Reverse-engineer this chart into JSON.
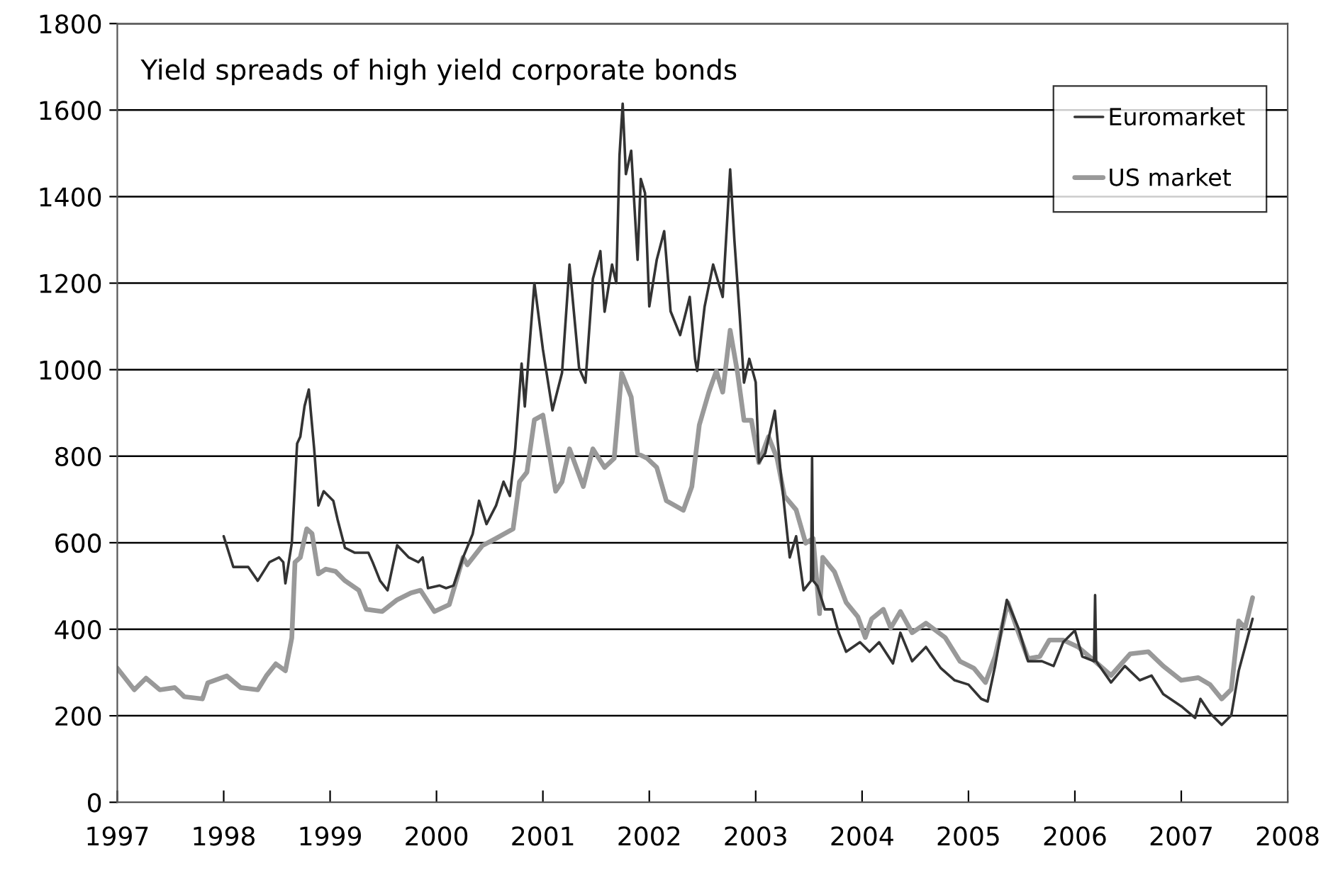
{
  "chart_data": {
    "type": "line",
    "title": "Yield spreads of high yield corporate bonds",
    "xlim": [
      1997,
      2008
    ],
    "xticks": [
      1997,
      1998,
      1999,
      2000,
      2001,
      2002,
      2003,
      2004,
      2005,
      2006,
      2007,
      2008
    ],
    "ylim": [
      0,
      1800
    ],
    "yticks": [
      0,
      200,
      400,
      600,
      800,
      1000,
      1200,
      1400,
      1600,
      1800
    ],
    "grid": "y",
    "legend": "top right",
    "marker": "none",
    "line_style": "solid",
    "series": [
      {
        "name": "Euromarket",
        "color": "#333333",
        "x": [
          1998.0,
          1998.09,
          1998.23,
          1998.32,
          1998.43,
          1998.52,
          1998.56,
          1998.58,
          1998.64,
          1998.69,
          1998.72,
          1998.76,
          1998.8,
          1998.85,
          1998.89,
          1998.94,
          1999.03,
          1999.07,
          1999.14,
          1999.23,
          1999.36,
          1999.4,
          1999.47,
          1999.54,
          1999.63,
          1999.74,
          1999.83,
          1999.87,
          1999.92,
          2000.03,
          2000.09,
          2000.16,
          2000.25,
          2000.34,
          2000.4,
          2000.47,
          2000.56,
          2000.63,
          2000.69,
          2000.74,
          2000.8,
          2000.83,
          2000.92,
          2001.0,
          2001.09,
          2001.18,
          2001.25,
          2001.34,
          2001.4,
          2001.47,
          2001.54,
          2001.58,
          2001.65,
          2001.69,
          2001.72,
          2001.75,
          2001.78,
          2001.83,
          2001.89,
          2001.92,
          2001.96,
          2002.0,
          2002.07,
          2002.14,
          2002.2,
          2002.29,
          2002.38,
          2002.43,
          2002.45,
          2002.52,
          2002.6,
          2002.69,
          2002.76,
          2002.8,
          2002.85,
          2002.89,
          2002.94,
          2003.0,
          2003.03,
          2003.09,
          2003.18,
          2003.23,
          2003.32,
          2003.38,
          2003.45,
          2003.52,
          2003.53,
          2003.54,
          2003.58,
          2003.65,
          2003.72,
          2003.78,
          2003.85,
          2003.98,
          2004.07,
          2004.16,
          2004.29,
          2004.36,
          2004.47,
          2004.6,
          2004.74,
          2004.87,
          2005.0,
          2005.12,
          2005.18,
          2005.25,
          2005.36,
          2005.47,
          2005.56,
          2005.69,
          2005.8,
          2005.89,
          2006.0,
          2006.07,
          2006.18,
          2006.19,
          2006.2,
          2006.34,
          2006.47,
          2006.61,
          2006.72,
          2006.83,
          2007.0,
          2007.13,
          2007.18,
          2007.27,
          2007.38,
          2007.47,
          2007.54,
          2007.6,
          2007.67
        ],
        "values": [
          615,
          544,
          544,
          512,
          555,
          566,
          555,
          506,
          599,
          829,
          845,
          916,
          954,
          818,
          686,
          719,
          697,
          654,
          588,
          577,
          577,
          555,
          512,
          490,
          594,
          566,
          555,
          566,
          495,
          501,
          495,
          501,
          566,
          620,
          697,
          643,
          686,
          741,
          708,
          818,
          1014,
          915,
          1200,
          1047,
          906,
          993,
          1243,
          1004,
          970,
          1210,
          1274,
          1134,
          1243,
          1200,
          1495,
          1615,
          1452,
          1506,
          1254,
          1441,
          1408,
          1146,
          1254,
          1320,
          1135,
          1080,
          1168,
          1025,
          997,
          1146,
          1243,
          1168,
          1463,
          1299,
          1124,
          970,
          1025,
          971,
          785,
          807,
          905,
          774,
          566,
          615,
          490,
          512,
          796,
          512,
          500,
          446,
          446,
          392,
          348,
          370,
          348,
          370,
          321,
          392,
          326,
          359,
          310,
          282,
          272,
          239,
          233,
          315,
          468,
          402,
          326,
          326,
          315,
          370,
          397,
          337,
          326,
          479,
          326,
          277,
          315,
          282,
          293,
          250,
          222,
          195,
          239,
          206,
          179,
          201,
          304,
          359,
          424
        ]
      },
      {
        "name": "US market",
        "color": "#999999",
        "x": [
          1997.0,
          1997.16,
          1997.27,
          1997.4,
          1997.54,
          1997.63,
          1997.8,
          1997.85,
          1998.03,
          1998.16,
          1998.32,
          1998.4,
          1998.49,
          1998.58,
          1998.64,
          1998.67,
          1998.72,
          1998.78,
          1998.83,
          1998.89,
          1998.96,
          1999.05,
          1999.14,
          1999.27,
          1999.34,
          1999.49,
          1999.63,
          1999.76,
          1999.85,
          1999.98,
          2000.12,
          2000.25,
          2000.29,
          2000.43,
          2000.56,
          2000.72,
          2000.78,
          2000.85,
          2000.92,
          2001.0,
          2001.12,
          2001.18,
          2001.25,
          2001.38,
          2001.47,
          2001.58,
          2001.67,
          2001.74,
          2001.83,
          2001.89,
          2001.98,
          2002.07,
          2002.16,
          2002.32,
          2002.4,
          2002.47,
          2002.56,
          2002.63,
          2002.69,
          2002.76,
          2002.83,
          2002.89,
          2002.96,
          2003.03,
          2003.12,
          2003.2,
          2003.27,
          2003.38,
          2003.47,
          2003.54,
          2003.6,
          2003.63,
          2003.74,
          2003.85,
          2003.96,
          2004.03,
          2004.09,
          2004.2,
          2004.27,
          2004.36,
          2004.47,
          2004.6,
          2004.78,
          2004.92,
          2005.05,
          2005.16,
          2005.25,
          2005.37,
          2005.47,
          2005.56,
          2005.67,
          2005.76,
          2005.89,
          2006.03,
          2006.16,
          2006.34,
          2006.52,
          2006.69,
          2006.83,
          2007.0,
          2007.16,
          2007.27,
          2007.38,
          2007.47,
          2007.54,
          2007.6,
          2007.67
        ],
        "values": [
          310,
          260,
          287,
          260,
          265,
          244,
          239,
          276,
          292,
          265,
          260,
          292,
          320,
          304,
          380,
          555,
          566,
          632,
          621,
          528,
          539,
          534,
          512,
          490,
          446,
          441,
          468,
          484,
          490,
          441,
          457,
          566,
          549,
          593,
          610,
          632,
          741,
          763,
          884,
          895,
          719,
          741,
          817,
          730,
          817,
          774,
          795,
          992,
          937,
          806,
          795,
          774,
          697,
          675,
          730,
          872,
          948,
          997,
          948,
          1091,
          992,
          883,
          883,
          785,
          845,
          796,
          708,
          676,
          599,
          610,
          436,
          566,
          533,
          462,
          429,
          381,
          424,
          446,
          403,
          441,
          392,
          414,
          381,
          326,
          310,
          277,
          337,
          462,
          392,
          332,
          337,
          375,
          375,
          359,
          332,
          293,
          343,
          348,
          315,
          282,
          288,
          272,
          239,
          261,
          419,
          403,
          473
        ]
      }
    ]
  }
}
